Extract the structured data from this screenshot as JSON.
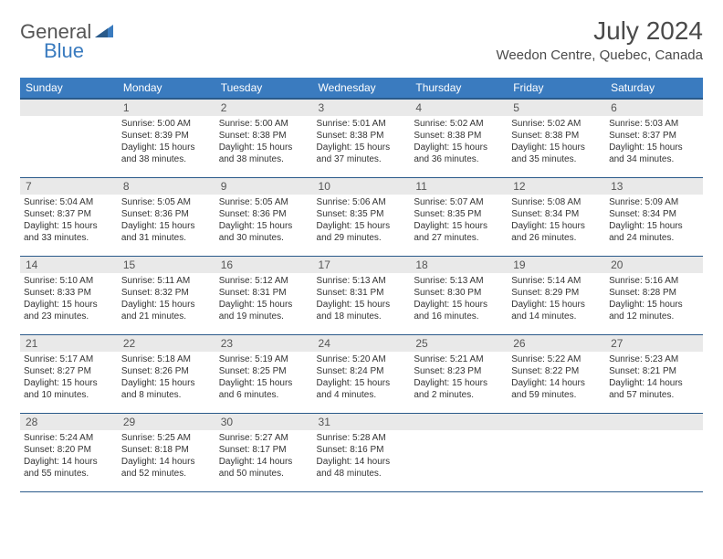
{
  "logo": {
    "text1": "General",
    "text2": "Blue"
  },
  "title": "July 2024",
  "location": "Weedon Centre, Quebec, Canada",
  "colors": {
    "header_bg": "#3a7bbf",
    "header_text": "#ffffff",
    "daynum_bg": "#e9e9e9",
    "border": "#2a5a8a",
    "text": "#333333"
  },
  "weekdays": [
    "Sunday",
    "Monday",
    "Tuesday",
    "Wednesday",
    "Thursday",
    "Friday",
    "Saturday"
  ],
  "weeks": [
    [
      {
        "num": "",
        "sunrise": "",
        "sunset": "",
        "daylight": ""
      },
      {
        "num": "1",
        "sunrise": "Sunrise: 5:00 AM",
        "sunset": "Sunset: 8:39 PM",
        "daylight": "Daylight: 15 hours and 38 minutes."
      },
      {
        "num": "2",
        "sunrise": "Sunrise: 5:00 AM",
        "sunset": "Sunset: 8:38 PM",
        "daylight": "Daylight: 15 hours and 38 minutes."
      },
      {
        "num": "3",
        "sunrise": "Sunrise: 5:01 AM",
        "sunset": "Sunset: 8:38 PM",
        "daylight": "Daylight: 15 hours and 37 minutes."
      },
      {
        "num": "4",
        "sunrise": "Sunrise: 5:02 AM",
        "sunset": "Sunset: 8:38 PM",
        "daylight": "Daylight: 15 hours and 36 minutes."
      },
      {
        "num": "5",
        "sunrise": "Sunrise: 5:02 AM",
        "sunset": "Sunset: 8:38 PM",
        "daylight": "Daylight: 15 hours and 35 minutes."
      },
      {
        "num": "6",
        "sunrise": "Sunrise: 5:03 AM",
        "sunset": "Sunset: 8:37 PM",
        "daylight": "Daylight: 15 hours and 34 minutes."
      }
    ],
    [
      {
        "num": "7",
        "sunrise": "Sunrise: 5:04 AM",
        "sunset": "Sunset: 8:37 PM",
        "daylight": "Daylight: 15 hours and 33 minutes."
      },
      {
        "num": "8",
        "sunrise": "Sunrise: 5:05 AM",
        "sunset": "Sunset: 8:36 PM",
        "daylight": "Daylight: 15 hours and 31 minutes."
      },
      {
        "num": "9",
        "sunrise": "Sunrise: 5:05 AM",
        "sunset": "Sunset: 8:36 PM",
        "daylight": "Daylight: 15 hours and 30 minutes."
      },
      {
        "num": "10",
        "sunrise": "Sunrise: 5:06 AM",
        "sunset": "Sunset: 8:35 PM",
        "daylight": "Daylight: 15 hours and 29 minutes."
      },
      {
        "num": "11",
        "sunrise": "Sunrise: 5:07 AM",
        "sunset": "Sunset: 8:35 PM",
        "daylight": "Daylight: 15 hours and 27 minutes."
      },
      {
        "num": "12",
        "sunrise": "Sunrise: 5:08 AM",
        "sunset": "Sunset: 8:34 PM",
        "daylight": "Daylight: 15 hours and 26 minutes."
      },
      {
        "num": "13",
        "sunrise": "Sunrise: 5:09 AM",
        "sunset": "Sunset: 8:34 PM",
        "daylight": "Daylight: 15 hours and 24 minutes."
      }
    ],
    [
      {
        "num": "14",
        "sunrise": "Sunrise: 5:10 AM",
        "sunset": "Sunset: 8:33 PM",
        "daylight": "Daylight: 15 hours and 23 minutes."
      },
      {
        "num": "15",
        "sunrise": "Sunrise: 5:11 AM",
        "sunset": "Sunset: 8:32 PM",
        "daylight": "Daylight: 15 hours and 21 minutes."
      },
      {
        "num": "16",
        "sunrise": "Sunrise: 5:12 AM",
        "sunset": "Sunset: 8:31 PM",
        "daylight": "Daylight: 15 hours and 19 minutes."
      },
      {
        "num": "17",
        "sunrise": "Sunrise: 5:13 AM",
        "sunset": "Sunset: 8:31 PM",
        "daylight": "Daylight: 15 hours and 18 minutes."
      },
      {
        "num": "18",
        "sunrise": "Sunrise: 5:13 AM",
        "sunset": "Sunset: 8:30 PM",
        "daylight": "Daylight: 15 hours and 16 minutes."
      },
      {
        "num": "19",
        "sunrise": "Sunrise: 5:14 AM",
        "sunset": "Sunset: 8:29 PM",
        "daylight": "Daylight: 15 hours and 14 minutes."
      },
      {
        "num": "20",
        "sunrise": "Sunrise: 5:16 AM",
        "sunset": "Sunset: 8:28 PM",
        "daylight": "Daylight: 15 hours and 12 minutes."
      }
    ],
    [
      {
        "num": "21",
        "sunrise": "Sunrise: 5:17 AM",
        "sunset": "Sunset: 8:27 PM",
        "daylight": "Daylight: 15 hours and 10 minutes."
      },
      {
        "num": "22",
        "sunrise": "Sunrise: 5:18 AM",
        "sunset": "Sunset: 8:26 PM",
        "daylight": "Daylight: 15 hours and 8 minutes."
      },
      {
        "num": "23",
        "sunrise": "Sunrise: 5:19 AM",
        "sunset": "Sunset: 8:25 PM",
        "daylight": "Daylight: 15 hours and 6 minutes."
      },
      {
        "num": "24",
        "sunrise": "Sunrise: 5:20 AM",
        "sunset": "Sunset: 8:24 PM",
        "daylight": "Daylight: 15 hours and 4 minutes."
      },
      {
        "num": "25",
        "sunrise": "Sunrise: 5:21 AM",
        "sunset": "Sunset: 8:23 PM",
        "daylight": "Daylight: 15 hours and 2 minutes."
      },
      {
        "num": "26",
        "sunrise": "Sunrise: 5:22 AM",
        "sunset": "Sunset: 8:22 PM",
        "daylight": "Daylight: 14 hours and 59 minutes."
      },
      {
        "num": "27",
        "sunrise": "Sunrise: 5:23 AM",
        "sunset": "Sunset: 8:21 PM",
        "daylight": "Daylight: 14 hours and 57 minutes."
      }
    ],
    [
      {
        "num": "28",
        "sunrise": "Sunrise: 5:24 AM",
        "sunset": "Sunset: 8:20 PM",
        "daylight": "Daylight: 14 hours and 55 minutes."
      },
      {
        "num": "29",
        "sunrise": "Sunrise: 5:25 AM",
        "sunset": "Sunset: 8:18 PM",
        "daylight": "Daylight: 14 hours and 52 minutes."
      },
      {
        "num": "30",
        "sunrise": "Sunrise: 5:27 AM",
        "sunset": "Sunset: 8:17 PM",
        "daylight": "Daylight: 14 hours and 50 minutes."
      },
      {
        "num": "31",
        "sunrise": "Sunrise: 5:28 AM",
        "sunset": "Sunset: 8:16 PM",
        "daylight": "Daylight: 14 hours and 48 minutes."
      },
      {
        "num": "",
        "sunrise": "",
        "sunset": "",
        "daylight": ""
      },
      {
        "num": "",
        "sunrise": "",
        "sunset": "",
        "daylight": ""
      },
      {
        "num": "",
        "sunrise": "",
        "sunset": "",
        "daylight": ""
      }
    ]
  ]
}
